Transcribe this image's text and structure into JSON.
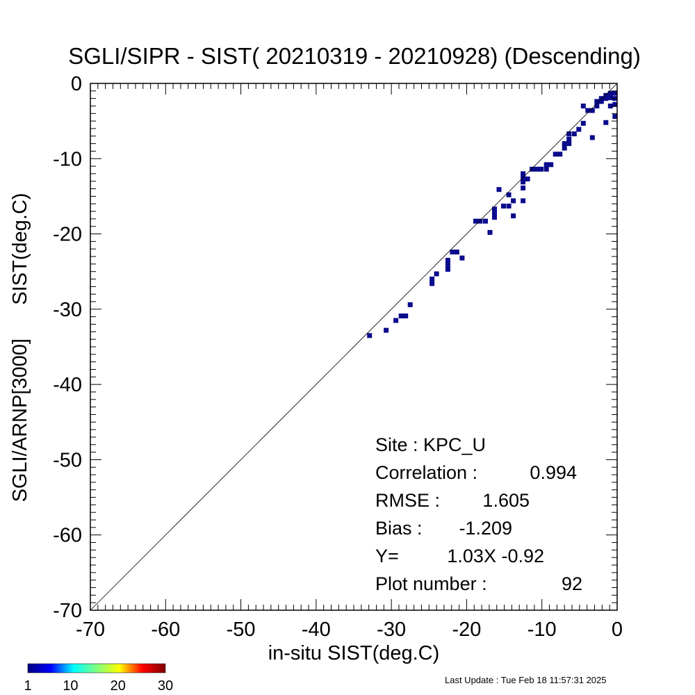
{
  "chart_data": {
    "type": "heatmap",
    "title": "SGLI/SIPR - SIST( 20210319 - 20210928) (Descending)",
    "xlabel": "in-situ SIST(deg.C)",
    "ylabel": "SGLI/ARNP[3000]      SIST(deg.C)",
    "xlim": [
      -70,
      0
    ],
    "ylim": [
      -70,
      0
    ],
    "x_ticks": [
      "-70",
      "-60",
      "-50",
      "-40",
      "-30",
      "-20",
      "-10",
      "0"
    ],
    "y_ticks": [
      "-70",
      "-60",
      "-50",
      "-40",
      "-30",
      "-20",
      "-10",
      "0"
    ],
    "reference_line": "y = x",
    "cell_color": "#0a0a8c",
    "points": [
      [
        -32.9,
        -33.5
      ],
      [
        -30.7,
        -32.8
      ],
      [
        -29.4,
        -31.5
      ],
      [
        -28.7,
        -30.9
      ],
      [
        -28.1,
        -30.9
      ],
      [
        -27.5,
        -29.4
      ],
      [
        -24.6,
        -26.6
      ],
      [
        -24.6,
        -26.0
      ],
      [
        -24.0,
        -25.3
      ],
      [
        -22.5,
        -24.7
      ],
      [
        -22.5,
        -24.1
      ],
      [
        -22.5,
        -23.5
      ],
      [
        -21.9,
        -22.4
      ],
      [
        -21.3,
        -22.4
      ],
      [
        -20.6,
        -23.2
      ],
      [
        -18.8,
        -18.3
      ],
      [
        -18.2,
        -18.3
      ],
      [
        -17.5,
        -18.3
      ],
      [
        -16.9,
        -19.8
      ],
      [
        -16.3,
        -17.8
      ],
      [
        -16.3,
        -17.2
      ],
      [
        -16.3,
        -16.7
      ],
      [
        -15.7,
        -14.1
      ],
      [
        -15.1,
        -16.3
      ],
      [
        -14.4,
        -16.3
      ],
      [
        -14.4,
        -14.8
      ],
      [
        -13.8,
        -15.6
      ],
      [
        -13.8,
        -17.6
      ],
      [
        -12.5,
        -15.6
      ],
      [
        -12.5,
        -13.9
      ],
      [
        -12.5,
        -13.1
      ],
      [
        -12.5,
        -12.5
      ],
      [
        -12.5,
        -12.0
      ],
      [
        -11.9,
        -12.7
      ],
      [
        -11.3,
        -11.4
      ],
      [
        -10.7,
        -11.4
      ],
      [
        -10.1,
        -11.4
      ],
      [
        -9.4,
        -11.4
      ],
      [
        -9.4,
        -10.8
      ],
      [
        -8.8,
        -10.8
      ],
      [
        -8.2,
        -9.4
      ],
      [
        -7.6,
        -9.4
      ],
      [
        -7.0,
        -8.6
      ],
      [
        -7.0,
        -8.0
      ],
      [
        -6.4,
        -8.0
      ],
      [
        -6.4,
        -7.4
      ],
      [
        -6.4,
        -6.7
      ],
      [
        -5.7,
        -6.7
      ],
      [
        -5.1,
        -6.1
      ],
      [
        -4.5,
        -5.3
      ],
      [
        -4.5,
        -3.0
      ],
      [
        -3.9,
        -3.6
      ],
      [
        -3.3,
        -3.6
      ],
      [
        -3.3,
        -7.2
      ],
      [
        -2.7,
        -3.0
      ],
      [
        -2.7,
        -2.4
      ],
      [
        -2.1,
        -2.4
      ],
      [
        -2.1,
        -2.0
      ],
      [
        -1.5,
        -2.0
      ],
      [
        -1.5,
        -1.6
      ],
      [
        -0.9,
        -1.3
      ],
      [
        -0.9,
        -1.9
      ],
      [
        -0.3,
        -1.3
      ],
      [
        -0.3,
        -2.0
      ],
      [
        -0.3,
        -2.8
      ],
      [
        -1.5,
        -5.2
      ],
      [
        -0.3,
        -4.4
      ],
      [
        -0.9,
        -3.0
      ]
    ],
    "stats": [
      {
        "label": "Site : KPC_U",
        "value": ""
      },
      {
        "label": "Correlation :",
        "value": "0.994"
      },
      {
        "label": "RMSE :",
        "value": "1.605"
      },
      {
        "label": "Bias :",
        "value": "-1.209"
      },
      {
        "label": "Y=",
        "value": "1.03X  -0.92"
      },
      {
        "label": "Plot number :",
        "value": "92"
      }
    ],
    "colorbar": {
      "range": [
        1,
        30
      ],
      "ticks": [
        "1",
        "10",
        "20",
        "30"
      ],
      "colors": [
        "#00007f",
        "#0000ff",
        "#00ffff",
        "#7fff7f",
        "#ffff00",
        "#ff0000",
        "#7f0000"
      ]
    }
  },
  "footer": {
    "last_update": "Last Update : Tue Feb 18 11:57:31 2025"
  }
}
